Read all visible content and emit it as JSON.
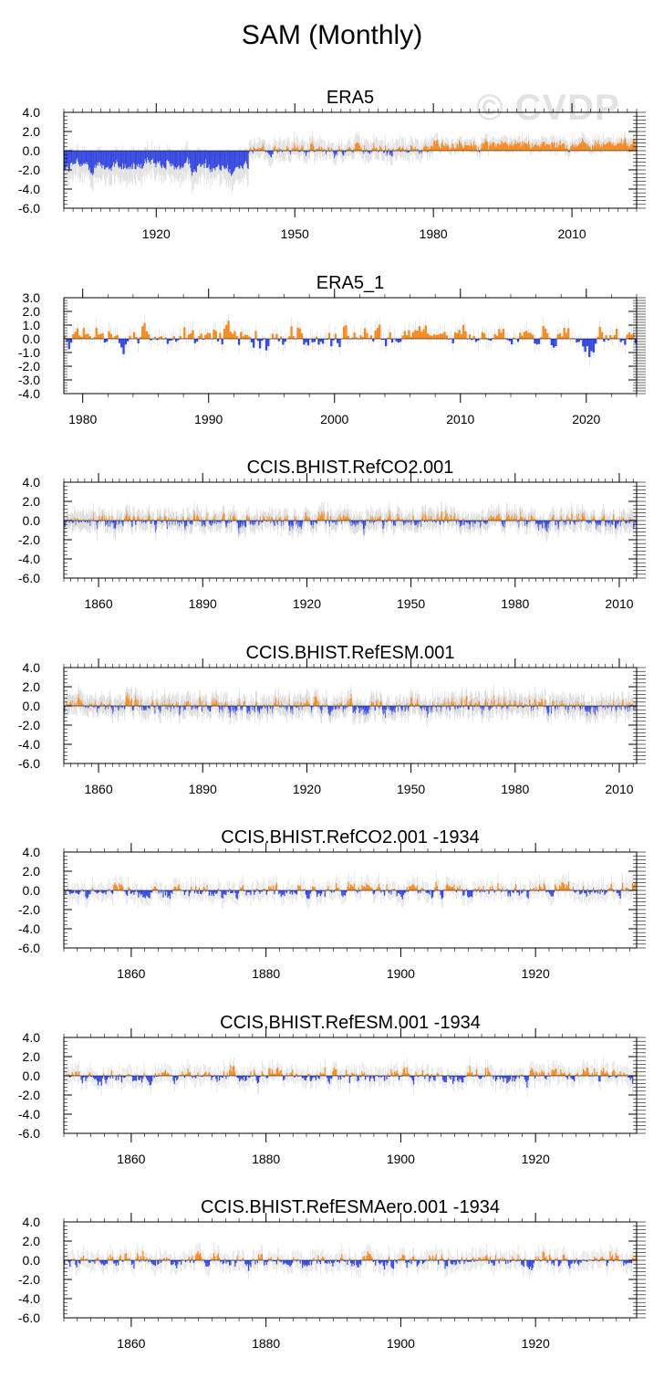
{
  "figure_title": "SAM (Monthly)",
  "watermark": "© CVDP",
  "colors": {
    "positive": "#f5891f",
    "negative": "#3346e0",
    "spread": "#d8d8d8",
    "axis": "#000000"
  },
  "chart_data": [
    {
      "type": "bar",
      "title": "ERA5",
      "x_range": [
        1900,
        2024
      ],
      "xticks": [
        "1920",
        "1950",
        "1980",
        "2010"
      ],
      "xtick_values": [
        1920,
        1950,
        1980,
        2010
      ],
      "ylim": [
        -6.0,
        4.0
      ],
      "yticks": [
        "4.0",
        "2.0",
        "0.0",
        "-2.0",
        "-4.0",
        "-6.0"
      ],
      "ytick_values": [
        4,
        2,
        0,
        -2,
        -4,
        -6
      ],
      "minor_y_step": 0.4,
      "segments": [
        {
          "start": 1900,
          "end": 1940,
          "base": -1.6,
          "amp": 1.0,
          "spread": 1.4
        },
        {
          "start": 1940,
          "end": 1980,
          "base": 0.1,
          "amp": 0.9,
          "spread": 0.9
        },
        {
          "start": 1980,
          "end": 2024,
          "base": 0.7,
          "amp": 0.75,
          "spread": 0.6
        }
      ]
    },
    {
      "type": "bar",
      "title": "ERA5_1",
      "x_range": [
        1978.5,
        2024
      ],
      "xticks": [
        "1980",
        "1990",
        "2000",
        "2010",
        "2020"
      ],
      "xtick_values": [
        1980,
        1990,
        2000,
        2010,
        2020
      ],
      "ylim": [
        -4.0,
        3.0
      ],
      "yticks": [
        "3.0",
        "2.0",
        "1.0",
        "0.0",
        "-1.0",
        "-2.0",
        "-3.0",
        "-4.0"
      ],
      "ytick_values": [
        3,
        2,
        1,
        0,
        -1,
        -2,
        -3,
        -4
      ],
      "minor_y_step": 0.2,
      "segments": [
        {
          "start": 1978.5,
          "end": 2024,
          "base": 0.1,
          "amp": 1.15,
          "spread": 0.5
        }
      ]
    },
    {
      "type": "bar",
      "title": "CCIS.BHIST.RefCO2.001",
      "x_range": [
        1850,
        2015
      ],
      "xticks": [
        "1860",
        "1890",
        "1920",
        "1950",
        "1980",
        "2010"
      ],
      "xtick_values": [
        1860,
        1890,
        1920,
        1950,
        1980,
        2010
      ],
      "ylim": [
        -6.0,
        4.0
      ],
      "yticks": [
        "4.0",
        "2.0",
        "0.0",
        "-2.0",
        "-4.0",
        "-6.0"
      ],
      "ytick_values": [
        4,
        2,
        0,
        -2,
        -4,
        -6
      ],
      "minor_y_step": 0.4,
      "segments": [
        {
          "start": 1850,
          "end": 2015,
          "base": 0.0,
          "amp": 1.1,
          "spread": 0.8
        }
      ]
    },
    {
      "type": "bar",
      "title": "CCIS.BHIST.RefESM.001",
      "x_range": [
        1850,
        2015
      ],
      "xticks": [
        "1860",
        "1890",
        "1920",
        "1950",
        "1980",
        "2010"
      ],
      "xtick_values": [
        1860,
        1890,
        1920,
        1950,
        1980,
        2010
      ],
      "ylim": [
        -6.0,
        4.0
      ],
      "yticks": [
        "4.0",
        "2.0",
        "0.0",
        "-2.0",
        "-4.0",
        "-6.0"
      ],
      "ytick_values": [
        4,
        2,
        0,
        -2,
        -4,
        -6
      ],
      "minor_y_step": 0.4,
      "segments": [
        {
          "start": 1850,
          "end": 2015,
          "base": 0.0,
          "amp": 1.1,
          "spread": 0.9
        }
      ]
    },
    {
      "type": "bar",
      "title": "CCIS.BHIST.RefCO2.001 -1934",
      "x_range": [
        1850,
        1935
      ],
      "xticks": [
        "1860",
        "1880",
        "1900",
        "1920"
      ],
      "xtick_values": [
        1860,
        1880,
        1900,
        1920
      ],
      "ylim": [
        -6.0,
        4.0
      ],
      "yticks": [
        "4.0",
        "2.0",
        "0.0",
        "-2.0",
        "-4.0",
        "-6.0"
      ],
      "ytick_values": [
        4,
        2,
        0,
        -2,
        -4,
        -6
      ],
      "minor_y_step": 0.4,
      "segments": [
        {
          "start": 1850,
          "end": 1935,
          "base": 0.0,
          "amp": 1.05,
          "spread": 0.8
        }
      ]
    },
    {
      "type": "bar",
      "title": "CCIS.BHIST.RefESM.001 -1934",
      "x_range": [
        1850,
        1935
      ],
      "xticks": [
        "1860",
        "1880",
        "1900",
        "1920"
      ],
      "xtick_values": [
        1860,
        1880,
        1900,
        1920
      ],
      "ylim": [
        -6.0,
        4.0
      ],
      "yticks": [
        "4.0",
        "2.0",
        "0.0",
        "-2.0",
        "-4.0",
        "-6.0"
      ],
      "ytick_values": [
        4,
        2,
        0,
        -2,
        -4,
        -6
      ],
      "minor_y_step": 0.4,
      "segments": [
        {
          "start": 1850,
          "end": 1935,
          "base": 0.0,
          "amp": 1.05,
          "spread": 0.8
        }
      ]
    },
    {
      "type": "bar",
      "title": "CCIS.BHIST.RefESMAero.001 -1934",
      "x_range": [
        1850,
        1935
      ],
      "xticks": [
        "1860",
        "1880",
        "1900",
        "1920"
      ],
      "xtick_values": [
        1860,
        1880,
        1900,
        1920
      ],
      "ylim": [
        -6.0,
        4.0
      ],
      "yticks": [
        "4.0",
        "2.0",
        "0.0",
        "-2.0",
        "-4.0",
        "-6.0"
      ],
      "ytick_values": [
        4,
        2,
        0,
        -2,
        -4,
        -6
      ],
      "minor_y_step": 0.4,
      "segments": [
        {
          "start": 1850,
          "end": 1935,
          "base": 0.0,
          "amp": 1.05,
          "spread": 0.8
        }
      ]
    }
  ]
}
